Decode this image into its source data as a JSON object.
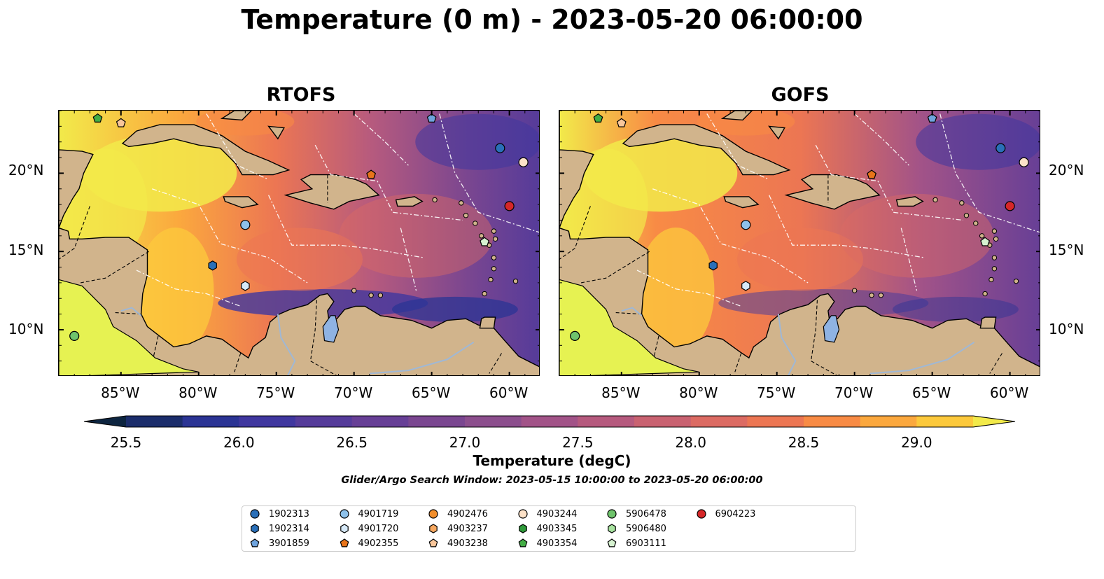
{
  "title": "Temperature (0 m) - 2023-05-20 06:00:00",
  "panels": [
    {
      "title": "RTOFS"
    },
    {
      "title": "GOFS"
    }
  ],
  "axes": {
    "lon_range": [
      -89,
      -58
    ],
    "lat_range": [
      7,
      24
    ],
    "x_ticks": [
      "85°W",
      "80°W",
      "75°W",
      "70°W",
      "65°W",
      "60°W"
    ],
    "y_ticks": [
      "20°N",
      "15°N",
      "10°N"
    ]
  },
  "colorbar": {
    "label": "Temperature (degC)",
    "range": [
      25.5,
      29.25
    ],
    "extend": "both",
    "ticks": [
      "25.5",
      "26.0",
      "26.5",
      "27.0",
      "27.5",
      "28.0",
      "28.5",
      "29.0"
    ],
    "colors": [
      "#0d2540",
      "#1b2d6b",
      "#2b3494",
      "#40379f",
      "#553b9a",
      "#673f96",
      "#7a4690",
      "#8c4e8d",
      "#a25388",
      "#b65a7e",
      "#c96271",
      "#dc6b63",
      "#ec7653",
      "#f88b45",
      "#fba83e",
      "#fcc93c",
      "#f2ea4a"
    ]
  },
  "search_window": "Glider/Argo Search Window: 2023-05-15 10:00:00 to 2023-05-20 06:00:00",
  "legend": [
    {
      "id": "1902313",
      "marker": "circle",
      "color": "#2a6fb8"
    },
    {
      "id": "1902314",
      "marker": "hexagon",
      "color": "#2a6fb8"
    },
    {
      "id": "3901859",
      "marker": "pentagon",
      "color": "#6fa4de"
    },
    {
      "id": "4901719",
      "marker": "circle",
      "color": "#8ec1ea"
    },
    {
      "id": "4901720",
      "marker": "hexagon",
      "color": "#d6e9f8"
    },
    {
      "id": "4902355",
      "marker": "pentagon",
      "color": "#e8741a"
    },
    {
      "id": "4902476",
      "marker": "circle",
      "color": "#f28e2b"
    },
    {
      "id": "4903237",
      "marker": "hexagon",
      "color": "#f7a860"
    },
    {
      "id": "4903238",
      "marker": "pentagon",
      "color": "#f9c69a"
    },
    {
      "id": "4903244",
      "marker": "circle",
      "color": "#fde2c8"
    },
    {
      "id": "4903345",
      "marker": "hexagon",
      "color": "#2f9a3a"
    },
    {
      "id": "4903354",
      "marker": "pentagon",
      "color": "#43ad45"
    },
    {
      "id": "5906478",
      "marker": "circle",
      "color": "#6fc46c"
    },
    {
      "id": "5906480",
      "marker": "hexagon",
      "color": "#a8e3a0"
    },
    {
      "id": "6903111",
      "marker": "pentagon",
      "color": "#d6f2d0"
    },
    {
      "id": "6904223",
      "marker": "circle",
      "color": "#d62728"
    }
  ],
  "floats": [
    {
      "id": "1902313",
      "lon": -60.6,
      "lat": 21.6
    },
    {
      "id": "1902314",
      "lon": -79.1,
      "lat": 14.1
    },
    {
      "id": "3901859",
      "lon": -65.0,
      "lat": 23.5
    },
    {
      "id": "4901719",
      "lon": -77.0,
      "lat": 16.7
    },
    {
      "id": "4901720",
      "lon": -77.0,
      "lat": 12.8
    },
    {
      "id": "4902355",
      "lon": -68.9,
      "lat": 19.9
    },
    {
      "id": "4903238",
      "lon": -85.0,
      "lat": 23.2
    },
    {
      "id": "4903244",
      "lon": -59.1,
      "lat": 20.7
    },
    {
      "id": "4903354",
      "lon": -86.5,
      "lat": 23.5
    },
    {
      "id": "5906478",
      "lon": -88.0,
      "lat": 9.6
    },
    {
      "id": "6903111",
      "lon": -61.6,
      "lat": 15.6
    },
    {
      "id": "6904223",
      "lon": -60.0,
      "lat": 17.9
    }
  ]
}
